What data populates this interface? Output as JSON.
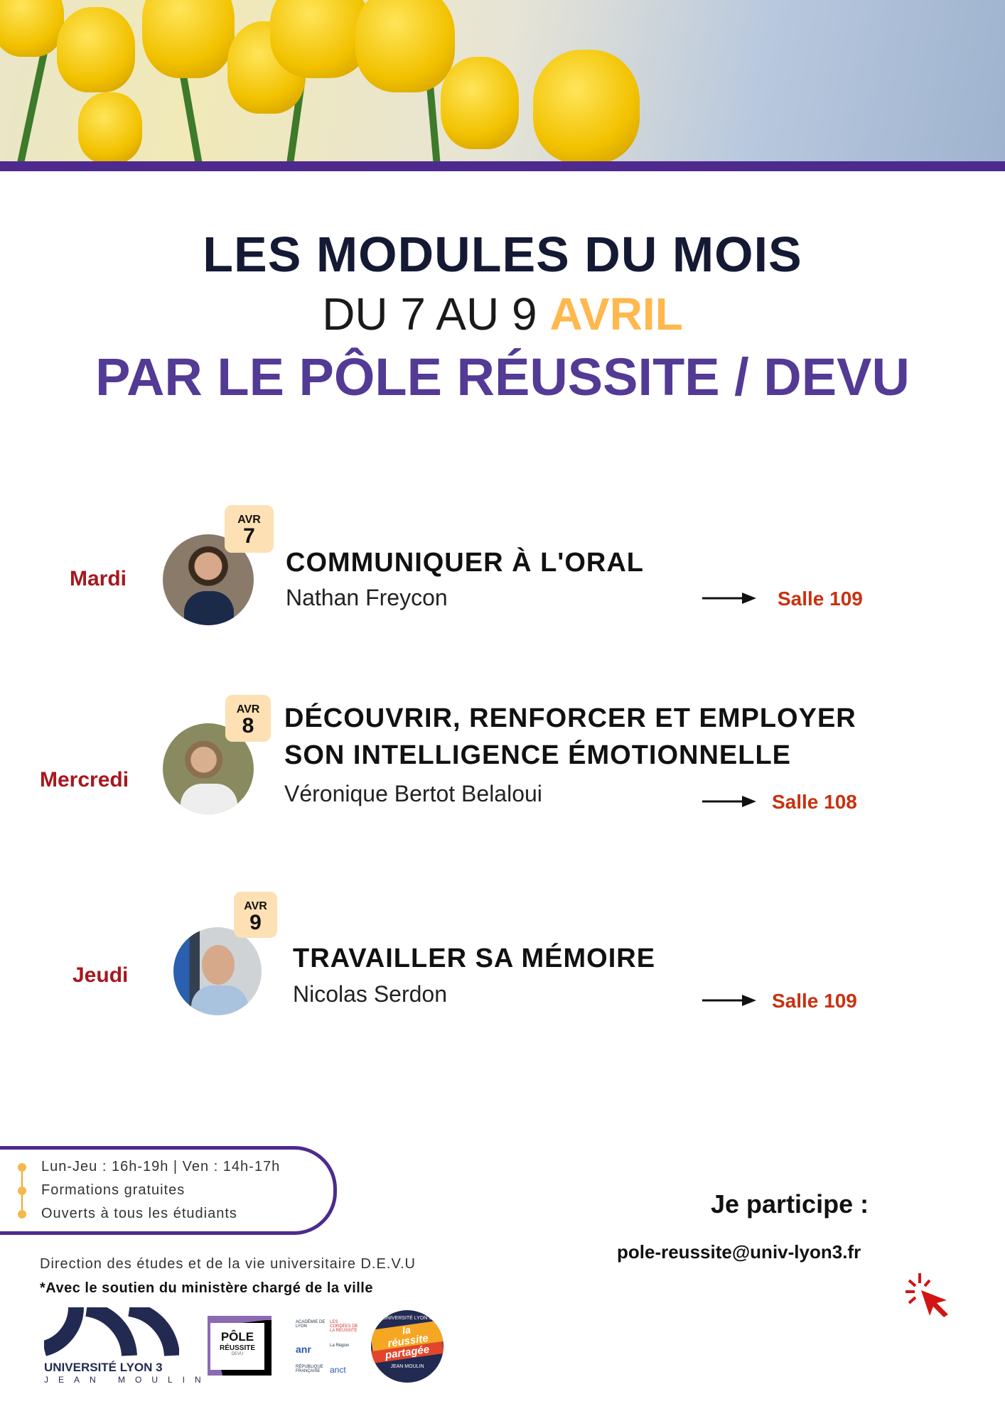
{
  "title": {
    "line1": "LES MODULES DU MOIS",
    "line2_prefix": "DU 7 AU 9",
    "line2_month": "AVRIL",
    "line3": "PAR LE PÔLE RÉUSSITE / DEVU"
  },
  "colors": {
    "purple": "#4e2a8e",
    "title_purple": "#533a95",
    "accent_orange": "#ffb84d",
    "day_red": "#a8171d",
    "room_red": "#c9310f",
    "badge_bg": "#fde0b3"
  },
  "modules": [
    {
      "day": "Mardi",
      "badge_month": "AVR",
      "badge_day": "7",
      "title_lines": [
        "COMMUNIQUER À L'ORAL"
      ],
      "speaker": "Nathan Freycon",
      "room": "Salle 109"
    },
    {
      "day": "Mercredi",
      "badge_month": "AVR",
      "badge_day": "8",
      "title_lines": [
        "DÉCOUVRIR, RENFORCER ET EMPLOYER",
        "SON INTELLIGENCE ÉMOTIONNELLE"
      ],
      "speaker": "Véronique Bertot Belaloui",
      "room": "Salle 108"
    },
    {
      "day": "Jeudi",
      "badge_month": "AVR",
      "badge_day": "9",
      "title_lines": [
        "TRAVAILLER SA MÉMOIRE"
      ],
      "speaker": "Nicolas Serdon",
      "room": "Salle 109"
    }
  ],
  "info": [
    "Lun-Jeu : 16h-19h | Ven : 14h-17h",
    "Formations gratuites",
    "Ouverts à tous les étudiants"
  ],
  "cta": {
    "label": "Je participe :",
    "email": "pole-reussite@univ-lyon3.fr",
    "icon": "cursor-click-icon"
  },
  "footer": {
    "direction": "Direction des études et de la vie universitaire D.E.V.U",
    "support": "*Avec le soutien du ministère chargé de la ville"
  },
  "logos": {
    "ul3_line1": "UNIVERSITÉ LYON 3",
    "ul3_line2": "JEAN MOULIN",
    "pole_line1": "PÔLE",
    "pole_line2": "RÉUSSITE",
    "pole_line3": "DEVU",
    "partners": [
      "ACADÉMIE DE LYON",
      "LES CORDÉES DE LA RÉUSSITE",
      "anr",
      "La Région",
      "RÉPUBLIQUE FRANÇAISE",
      "anct"
    ],
    "badge_top": "UNIVERSITÉ LYON 3",
    "badge_la": "la",
    "badge_reussite": "réussite",
    "badge_partagee": "partagée",
    "badge_bottom": "JEAN MOULIN"
  }
}
